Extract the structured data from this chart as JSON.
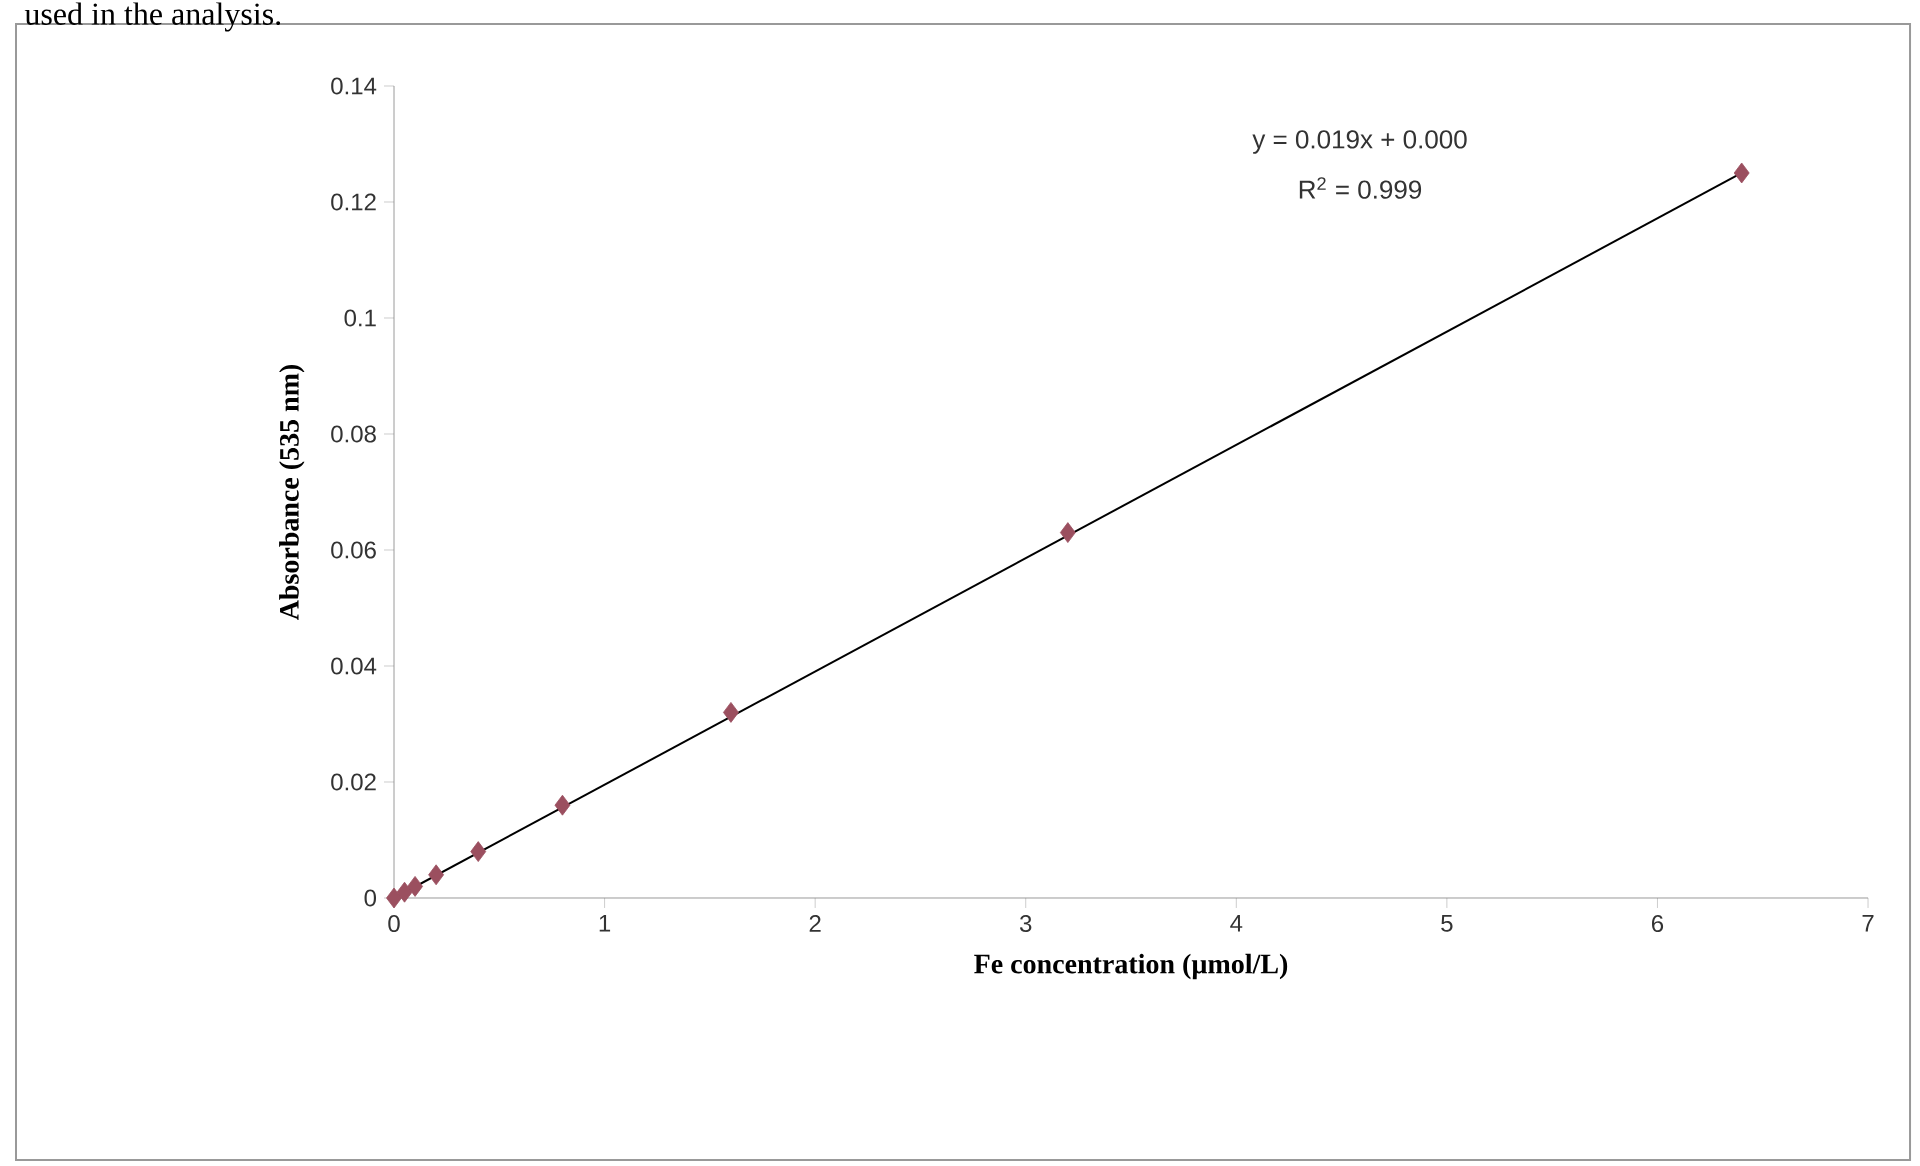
{
  "chart_data": {
    "type": "scatter",
    "xlabel": "Fe concentration (µmol/L)",
    "ylabel": "Absorbance (535 nm)",
    "xlim": [
      0,
      7
    ],
    "xticks": [
      0,
      1,
      2,
      3,
      4,
      5,
      6,
      7
    ],
    "ylim": [
      0,
      0.14
    ],
    "yticks": [
      0,
      0.02,
      0.04,
      0.06,
      0.08,
      0.1,
      0.12,
      0.14
    ],
    "grid": false,
    "series": [
      {
        "color": "#9b4f5f",
        "marker": "diamond",
        "x": [
          0,
          0.05,
          0.1,
          0.2,
          0.4,
          0.8,
          1.6,
          3.2,
          6.4
        ],
        "values": [
          0,
          0.001,
          0.002,
          0.004,
          0.008,
          0.016,
          0.032,
          0.063,
          0.125
        ]
      },
      {
        "type": "line",
        "marker": "none",
        "color": "#000000",
        "x": [
          0,
          6.4
        ],
        "values": [
          0,
          0.125
        ]
      }
    ],
    "annotations": [
      "y = 0.019x + 0.000",
      "R$^{2}$ = 0.999",
      "used in the analysis."
    ]
  }
}
